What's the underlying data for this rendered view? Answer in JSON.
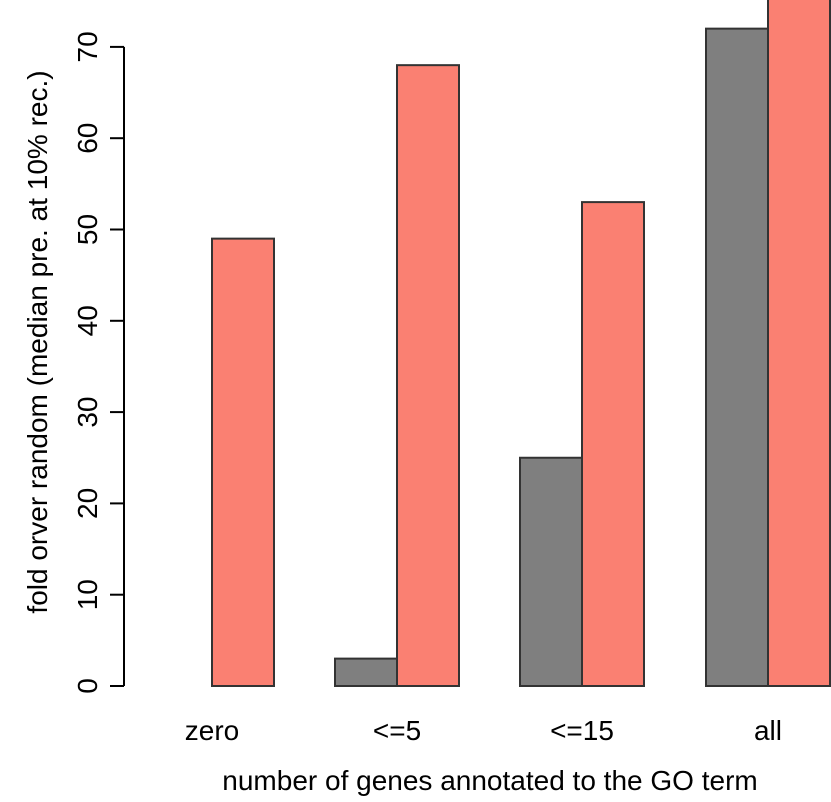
{
  "chart_data": {
    "type": "bar",
    "title": "",
    "xlabel": "number of genes annotated to the GO term",
    "ylabel": "fold orver random (median pre. at 10% rec.)",
    "categories": [
      "zero",
      "<=5",
      "<=15",
      "all"
    ],
    "series": [
      {
        "color": "#7f7f7f",
        "values": [
          0,
          3,
          25,
          72
        ]
      },
      {
        "color": "#fa8072",
        "values": [
          49,
          68,
          53,
          78
        ]
      }
    ],
    "ylim": [
      0,
      75
    ],
    "yticks": [
      "0",
      "10",
      "20",
      "30",
      "40",
      "50",
      "60",
      "70"
    ],
    "grid": false,
    "legend": "none"
  }
}
